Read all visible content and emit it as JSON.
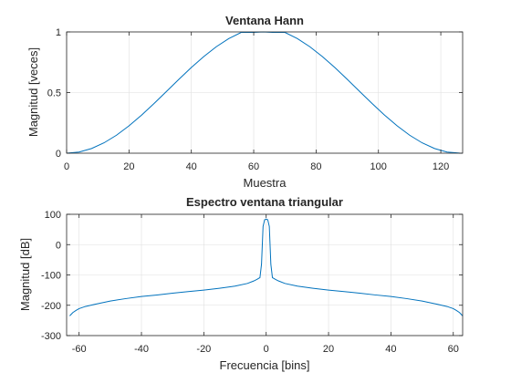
{
  "chart_data": [
    {
      "type": "line",
      "title": "Ventana Hann",
      "xlabel": "Muestra",
      "ylabel": "Magnitud [veces]",
      "xlim": [
        0,
        127
      ],
      "ylim": [
        0,
        1
      ],
      "xticks": [
        0,
        20,
        40,
        60,
        80,
        100,
        120
      ],
      "yticks": [
        0,
        0.5,
        1
      ],
      "xtick_labels": [
        "0",
        "20",
        "40",
        "60",
        "80",
        "100",
        "120"
      ],
      "ytick_labels": [
        "0",
        "0.5",
        "1"
      ],
      "grid": true,
      "color": "#0072BD",
      "series": [
        {
          "x": [
            0,
            4,
            8,
            12,
            16,
            20,
            24,
            28,
            32,
            36,
            40,
            44,
            48,
            52,
            56,
            60,
            63,
            66,
            70,
            74,
            78,
            82,
            86,
            90,
            94,
            98,
            102,
            106,
            110,
            114,
            118,
            122,
            126,
            127
          ],
          "values": [
            0,
            0.0098,
            0.0387,
            0.0856,
            0.1486,
            0.2254,
            0.3132,
            0.4087,
            0.5086,
            0.609,
            0.7065,
            0.7973,
            0.8779,
            0.9451,
            0.9962,
            0.9962,
            1.0,
            0.9962,
            0.9962,
            0.9451,
            0.8779,
            0.7973,
            0.7065,
            0.609,
            0.5086,
            0.4087,
            0.3132,
            0.2254,
            0.1486,
            0.0856,
            0.0387,
            0.0098,
            0.0006,
            0
          ]
        }
      ]
    },
    {
      "type": "line",
      "title": "Espectro ventana triangular",
      "xlabel": "Frecuencia [bins]",
      "ylabel": "Magnitud [dB]",
      "xlim": [
        -64,
        63
      ],
      "ylim": [
        -300,
        100
      ],
      "xticks": [
        -60,
        -40,
        -20,
        0,
        20,
        40,
        60
      ],
      "yticks": [
        -300,
        -200,
        -100,
        0,
        100
      ],
      "xtick_labels": [
        "-60",
        "-40",
        "-20",
        "0",
        "20",
        "40",
        "60"
      ],
      "ytick_labels": [
        "-300",
        "-200",
        "-100",
        "0",
        "100"
      ],
      "grid": true,
      "color": "#0072BD",
      "series": [
        {
          "x": [
            -63,
            -62,
            -61,
            -60,
            -58,
            -55,
            -50,
            -45,
            -40,
            -35,
            -30,
            -25,
            -20,
            -15,
            -10,
            -6,
            -4,
            -3,
            -2,
            -1.5,
            -1,
            -0.5,
            0,
            0.5,
            1,
            1.5,
            2,
            3,
            4,
            6,
            10,
            15,
            20,
            25,
            30,
            35,
            40,
            45,
            50,
            55,
            58,
            60,
            61,
            62,
            63
          ],
          "values": [
            -235,
            -224,
            -217,
            -211,
            -204,
            -197,
            -186,
            -178,
            -171,
            -166,
            -160,
            -155,
            -150,
            -144,
            -137,
            -128,
            -120,
            -115,
            -109,
            -65,
            60,
            82,
            84,
            82,
            60,
            -65,
            -109,
            -115,
            -120,
            -128,
            -137,
            -144,
            -150,
            -155,
            -160,
            -166,
            -171,
            -178,
            -186,
            -197,
            -204,
            -211,
            -217,
            -224,
            -235
          ]
        }
      ]
    }
  ]
}
